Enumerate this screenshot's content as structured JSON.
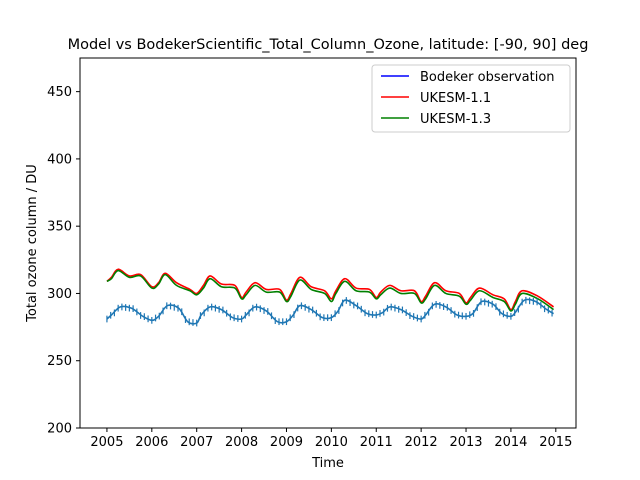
{
  "chart_data": {
    "type": "line",
    "title": "Model vs BodekerScientific_Total_Column_Ozone, latitude: [-90, 90] deg",
    "xlabel": "Time",
    "ylabel": "Total ozone column / DU",
    "xlim": [
      2004.4,
      2015.45
    ],
    "ylim": [
      200,
      475
    ],
    "x_ticks": [
      "2005",
      "2006",
      "2007",
      "2008",
      "2009",
      "2010",
      "2011",
      "2012",
      "2013",
      "2014",
      "2015"
    ],
    "y_ticks": [
      "200",
      "250",
      "300",
      "350",
      "400",
      "450"
    ],
    "grid": false,
    "legend_position": "top-right",
    "legend": [
      {
        "label": "Bodeker observation",
        "color": "#0000ff"
      },
      {
        "label": "UKESM-1.1",
        "color": "#ff0000"
      },
      {
        "label": "UKESM-1.3",
        "color": "#008000"
      }
    ],
    "observation": {
      "color": "#1f77b4",
      "error_bar": 2.5,
      "keyframes_x": [
        2005.0,
        2005.1,
        2005.3,
        2005.55,
        2005.8,
        2006.0,
        2006.15,
        2006.35,
        2006.6,
        2006.8,
        2007.0,
        2007.1,
        2007.3,
        2007.55,
        2007.8,
        2008.0,
        2008.1,
        2008.3,
        2008.55,
        2008.8,
        2009.0,
        2009.15,
        2009.3,
        2009.55,
        2009.8,
        2010.0,
        2010.15,
        2010.3,
        2010.55,
        2010.8,
        2011.0,
        2011.15,
        2011.3,
        2011.55,
        2011.8,
        2012.0,
        2012.1,
        2012.3,
        2012.55,
        2012.8,
        2013.0,
        2013.15,
        2013.35,
        2013.6,
        2013.8,
        2014.0,
        2014.1,
        2014.3,
        2014.55,
        2014.8,
        2014.95
      ],
      "keyframes_y": [
        281,
        284,
        290,
        289,
        283,
        280,
        283,
        291,
        289,
        279,
        278,
        284,
        290,
        288,
        282,
        281,
        284,
        290,
        287,
        279,
        279,
        284,
        291,
        288,
        282,
        282,
        287,
        295,
        291,
        285,
        284,
        286,
        290,
        288,
        283,
        281,
        284,
        292,
        290,
        284,
        283,
        285,
        294,
        292,
        285,
        283,
        286,
        295,
        294,
        288,
        285
      ]
    },
    "series": [
      {
        "name": "UKESM-1.1",
        "color": "#ff0000",
        "keyframes_x": [
          2005.0,
          2005.1,
          2005.25,
          2005.5,
          2005.75,
          2006.0,
          2006.15,
          2006.3,
          2006.55,
          2006.85,
          2007.0,
          2007.15,
          2007.3,
          2007.55,
          2007.85,
          2008.0,
          2008.1,
          2008.3,
          2008.55,
          2008.85,
          2009.0,
          2009.1,
          2009.3,
          2009.55,
          2009.85,
          2010.0,
          2010.1,
          2010.3,
          2010.55,
          2010.85,
          2011.0,
          2011.1,
          2011.3,
          2011.55,
          2011.85,
          2012.0,
          2012.1,
          2012.3,
          2012.55,
          2012.85,
          2013.0,
          2013.1,
          2013.3,
          2013.6,
          2013.85,
          2014.0,
          2014.1,
          2014.25,
          2014.6,
          2014.95
        ],
        "keyframes_y": [
          309,
          312,
          318,
          313,
          314,
          305,
          308,
          315,
          308,
          303,
          300,
          306,
          313,
          307,
          306,
          297,
          301,
          308,
          303,
          303,
          295,
          300,
          312,
          305,
          302,
          296,
          302,
          311,
          304,
          303,
          297,
          301,
          306,
          302,
          302,
          294,
          298,
          308,
          302,
          300,
          293,
          297,
          304,
          299,
          296,
          288,
          294,
          302,
          298,
          290
        ]
      },
      {
        "name": "UKESM-1.3",
        "color": "#008000",
        "keyframes_x": [
          2005.0,
          2005.1,
          2005.25,
          2005.5,
          2005.75,
          2006.0,
          2006.15,
          2006.3,
          2006.55,
          2006.85,
          2007.0,
          2007.15,
          2007.3,
          2007.55,
          2007.85,
          2008.0,
          2008.1,
          2008.3,
          2008.55,
          2008.85,
          2009.0,
          2009.1,
          2009.3,
          2009.55,
          2009.85,
          2010.0,
          2010.1,
          2010.3,
          2010.55,
          2010.85,
          2011.0,
          2011.1,
          2011.3,
          2011.55,
          2011.85,
          2012.0,
          2012.1,
          2012.3,
          2012.55,
          2012.85,
          2013.0,
          2013.1,
          2013.3,
          2013.6,
          2013.85,
          2014.0,
          2014.1,
          2014.25,
          2014.6,
          2014.95
        ],
        "keyframes_y": [
          309,
          311,
          317,
          312,
          313,
          304,
          307,
          314,
          306,
          302,
          299,
          304,
          311,
          305,
          304,
          296,
          299,
          306,
          301,
          301,
          294,
          298,
          310,
          303,
          300,
          294,
          300,
          309,
          302,
          301,
          296,
          299,
          304,
          300,
          300,
          293,
          296,
          306,
          300,
          298,
          292,
          295,
          302,
          297,
          294,
          287,
          292,
          300,
          296,
          288
        ]
      }
    ]
  }
}
